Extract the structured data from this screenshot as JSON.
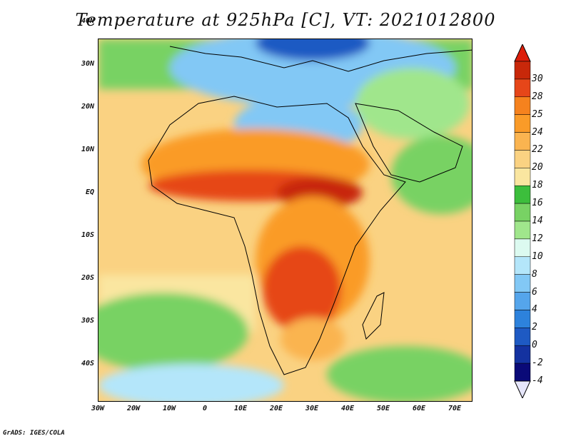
{
  "title": "Temperature at 925hPa [C], VT: 2021012800",
  "credit": "GrADS: IGES/COLA",
  "lat_labels": [
    "40N",
    "30N",
    "20N",
    "10N",
    "EQ",
    "10S",
    "20S",
    "30S",
    "40S"
  ],
  "lon_labels": [
    "30W",
    "20W",
    "10W",
    "0",
    "10E",
    "20E",
    "30E",
    "40E",
    "50E",
    "60E",
    "70E"
  ],
  "colorbar": {
    "labels": [
      "30",
      "28",
      "25",
      "24",
      "22",
      "20",
      "18",
      "16",
      "14",
      "12",
      "10",
      "8",
      "6",
      "4",
      "2",
      "0",
      "-2",
      "-4"
    ],
    "colors": [
      "#c8280a",
      "#e64619",
      "#f5821e",
      "#fa9b28",
      "#fab450",
      "#fad282",
      "#fae6a0",
      "#3cbe3c",
      "#78d264",
      "#a0e68c",
      "#dcfaf0",
      "#b4e6fa",
      "#82c8f5",
      "#55a5eb",
      "#2d82dc",
      "#1e5ac3",
      "#1432a0",
      "#0a0a78"
    ],
    "top_color": "#dc1e0a",
    "bottom_color": "#e6e6fa"
  },
  "map_colors": {
    "ocean_warm": "#fad282",
    "ocean_mild": "#fae6a0",
    "green": "#78d264",
    "light_green": "#a0e68c",
    "cold": "#82c8f5",
    "very_cold": "#1e5ac3",
    "hot": "#e64619",
    "hottest": "#c8280a",
    "warm": "#fa9b28"
  }
}
